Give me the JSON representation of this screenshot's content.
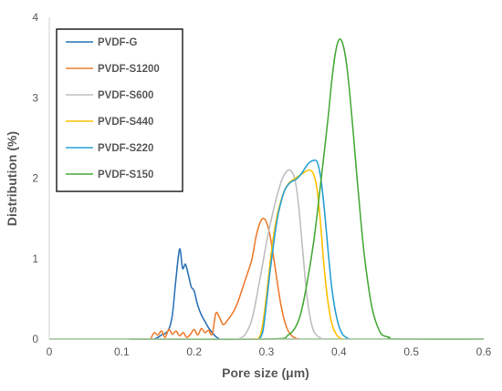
{
  "chart_data": {
    "type": "line",
    "xlabel": "Pore size (μm)",
    "ylabel": "Distribution (%)",
    "xlim": [
      0,
      0.6
    ],
    "ylim": [
      0,
      4
    ],
    "xticks": [
      "0",
      "0.1",
      "0.2",
      "0.3",
      "0.4",
      "0.5",
      "0.6"
    ],
    "yticks": [
      "0",
      "1",
      "2",
      "3",
      "4"
    ],
    "grid": false,
    "legend_position": "top-left",
    "series": [
      {
        "name": "PVDF-G",
        "color": "#2e75b6",
        "x": [
          0.145,
          0.15,
          0.155,
          0.16,
          0.165,
          0.17,
          0.175,
          0.18,
          0.184,
          0.188,
          0.192,
          0.196,
          0.2,
          0.205,
          0.21,
          0.215,
          0.22,
          0.225,
          0.23,
          0.235
        ],
        "y": [
          0,
          0.02,
          0.05,
          0.07,
          0.12,
          0.3,
          0.75,
          1.12,
          0.88,
          0.93,
          0.8,
          0.65,
          0.6,
          0.42,
          0.3,
          0.22,
          0.14,
          0.08,
          0.03,
          0
        ]
      },
      {
        "name": "PVDF-S1200",
        "color": "#ed7d31",
        "x": [
          0.14,
          0.145,
          0.15,
          0.155,
          0.16,
          0.165,
          0.17,
          0.175,
          0.18,
          0.185,
          0.19,
          0.195,
          0.2,
          0.205,
          0.21,
          0.215,
          0.22,
          0.225,
          0.23,
          0.235,
          0.24,
          0.245,
          0.25,
          0.255,
          0.26,
          0.265,
          0.27,
          0.275,
          0.28,
          0.285,
          0.29,
          0.295,
          0.3,
          0.305,
          0.31,
          0.315,
          0.32,
          0.325,
          0.33,
          0.335,
          0.34,
          0.345
        ],
        "y": [
          0,
          0.08,
          0.05,
          0.1,
          0.02,
          0.12,
          0.06,
          0.1,
          0.04,
          0.08,
          0.02,
          0.06,
          0.12,
          0.05,
          0.13,
          0.08,
          0.11,
          0.06,
          0.32,
          0.27,
          0.18,
          0.22,
          0.28,
          0.35,
          0.45,
          0.58,
          0.72,
          0.85,
          1.0,
          1.25,
          1.42,
          1.5,
          1.45,
          1.28,
          1.0,
          0.7,
          0.42,
          0.22,
          0.1,
          0.04,
          0.01,
          0
        ]
      },
      {
        "name": "PVDF-S600",
        "color": "#bfbfbf",
        "x": [
          0.26,
          0.27,
          0.28,
          0.29,
          0.3,
          0.31,
          0.32,
          0.325,
          0.33,
          0.335,
          0.34,
          0.345,
          0.35,
          0.355,
          0.36,
          0.365,
          0.37,
          0.375,
          0.38
        ],
        "y": [
          0,
          0.05,
          0.25,
          0.7,
          1.2,
          1.62,
          1.95,
          2.05,
          2.1,
          2.08,
          1.95,
          1.6,
          1.1,
          0.6,
          0.28,
          0.1,
          0.04,
          0.01,
          0
        ]
      },
      {
        "name": "PVDF-S440",
        "color": "#ffc000",
        "x": [
          0.28,
          0.29,
          0.295,
          0.3,
          0.305,
          0.31,
          0.315,
          0.32,
          0.325,
          0.33,
          0.335,
          0.34,
          0.345,
          0.35,
          0.355,
          0.36,
          0.365,
          0.37,
          0.375,
          0.38,
          0.385,
          0.39,
          0.395,
          0.4,
          0.405
        ],
        "y": [
          0,
          0.02,
          0.2,
          0.55,
          0.95,
          1.3,
          1.55,
          1.72,
          1.85,
          1.93,
          1.97,
          2.0,
          2.03,
          2.06,
          2.09,
          2.1,
          2.05,
          1.85,
          1.4,
          0.85,
          0.45,
          0.2,
          0.08,
          0.02,
          0
        ]
      },
      {
        "name": "PVDF-S220",
        "color": "#2aa1d6",
        "x": [
          0.29,
          0.295,
          0.3,
          0.305,
          0.31,
          0.315,
          0.32,
          0.325,
          0.33,
          0.335,
          0.34,
          0.345,
          0.35,
          0.355,
          0.36,
          0.365,
          0.37,
          0.375,
          0.38,
          0.385,
          0.39,
          0.395,
          0.4,
          0.405,
          0.41,
          0.415
        ],
        "y": [
          0,
          0.1,
          0.45,
          0.85,
          1.2,
          1.5,
          1.7,
          1.85,
          1.92,
          1.96,
          1.98,
          2.02,
          2.08,
          2.15,
          2.2,
          2.22,
          2.2,
          2.0,
          1.6,
          1.1,
          0.65,
          0.35,
          0.16,
          0.06,
          0.02,
          0
        ]
      },
      {
        "name": "PVDF-S150",
        "color": "#4aaa3c",
        "x": [
          0.11,
          0.3,
          0.33,
          0.345,
          0.355,
          0.365,
          0.375,
          0.385,
          0.39,
          0.395,
          0.4,
          0.405,
          0.41,
          0.415,
          0.42,
          0.425,
          0.43,
          0.435,
          0.44,
          0.445,
          0.45,
          0.455,
          0.46,
          0.47,
          0.48,
          0.6
        ],
        "y": [
          0,
          0,
          0.05,
          0.25,
          0.65,
          1.2,
          1.95,
          2.75,
          3.2,
          3.55,
          3.72,
          3.68,
          3.45,
          3.05,
          2.55,
          2.0,
          1.5,
          1.05,
          0.7,
          0.42,
          0.24,
          0.12,
          0.05,
          0.02,
          0,
          0
        ]
      }
    ]
  }
}
